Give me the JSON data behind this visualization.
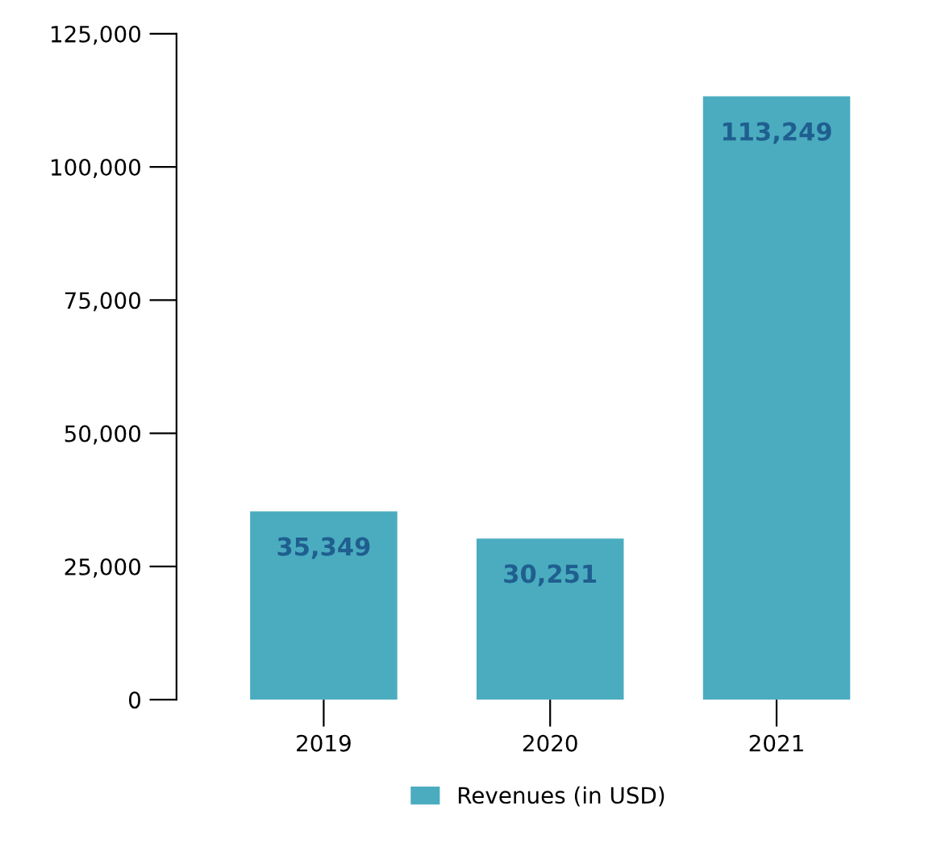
{
  "chart_data": {
    "type": "bar",
    "categories": [
      "2019",
      "2020",
      "2021"
    ],
    "series": [
      {
        "name": "Revenues (in USD)",
        "color": "#4bacc0",
        "values": [
          35349,
          30251,
          113249
        ],
        "value_labels": [
          "35,349",
          "30,251",
          "113,249"
        ]
      }
    ],
    "ylim": [
      0,
      125000
    ],
    "yticks": [
      {
        "value": 0,
        "label": "0"
      },
      {
        "value": 25000,
        "label": "25,000"
      },
      {
        "value": 50000,
        "label": "50,000"
      },
      {
        "value": 75000,
        "label": "75,000"
      },
      {
        "value": 100000,
        "label": "100,000"
      },
      {
        "value": 125000,
        "label": "125,000"
      }
    ],
    "grid": false,
    "legend": "bottom"
  }
}
